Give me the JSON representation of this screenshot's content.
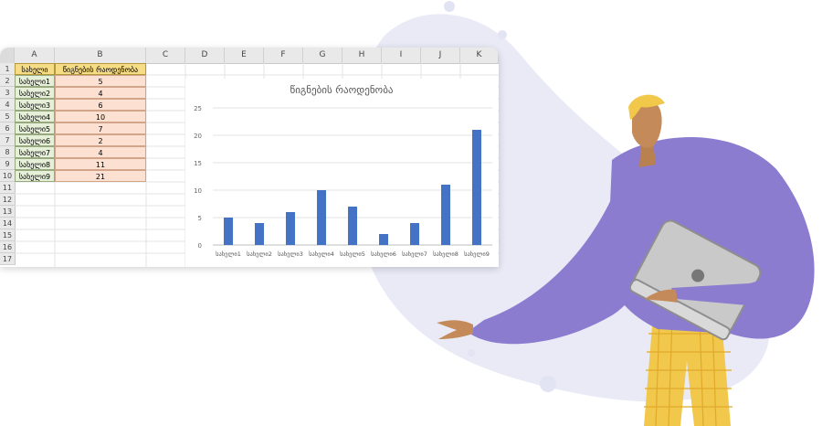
{
  "spreadsheet": {
    "columns": [
      "A",
      "B",
      "C",
      "D",
      "E",
      "F",
      "G",
      "H",
      "I",
      "J",
      "K"
    ],
    "rows": [
      "1",
      "2",
      "3",
      "4",
      "5",
      "6",
      "7",
      "8",
      "9",
      "10",
      "11",
      "12",
      "13",
      "14",
      "15",
      "16",
      "17"
    ],
    "header_a": "სახელი",
    "header_b": "წიგნების რაოდენობა",
    "names": [
      "სახელი1",
      "სახელი2",
      "სახელი3",
      "სახელი4",
      "სახელი5",
      "სახელი6",
      "სახელი7",
      "სახელი8",
      "სახელი9"
    ],
    "counts": [
      "5",
      "4",
      "6",
      "10",
      "7",
      "2",
      "4",
      "11",
      "21"
    ]
  },
  "chart_data": {
    "type": "bar",
    "title": "წიგნების რაოდენობა",
    "categories": [
      "სახელი1",
      "სახელი2",
      "სახელი3",
      "სახელი4",
      "სახელი5",
      "სახელი6",
      "სახელი7",
      "სახელი8",
      "სახელი9"
    ],
    "values": [
      5,
      4,
      6,
      10,
      7,
      2,
      4,
      11,
      21
    ],
    "yticks": [
      "0",
      "5",
      "10",
      "15",
      "20",
      "25"
    ],
    "ylim": [
      0,
      25
    ],
    "grid": true,
    "bar_color": "#4472c4"
  },
  "colors": {
    "blob": "#e8eaf6",
    "sweater": "#8c7cd0",
    "pants": "#f0c94a",
    "hair": "#f4c94a",
    "skin": "#c48a5a",
    "laptop": "#c9c9c9"
  }
}
